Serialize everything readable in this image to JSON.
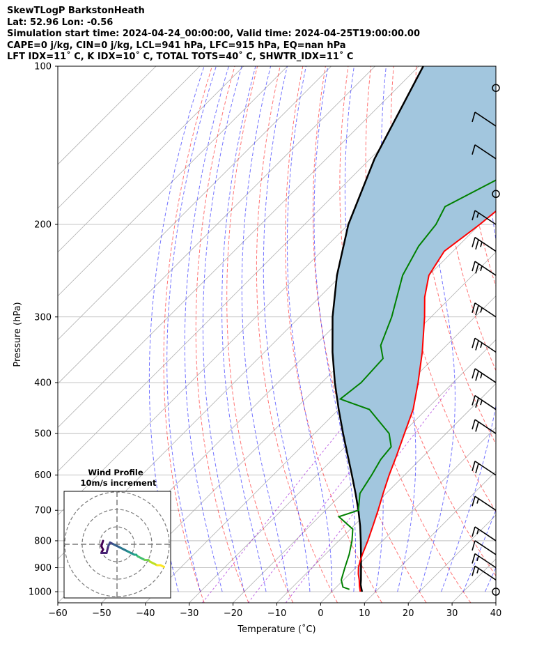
{
  "header": {
    "line1": "SkewTLogP BarkstonHeath",
    "line2": "Lat: 52.96   Lon: -0.56",
    "line3": "Simulation start time: 2024-04-24_00:00:00, Valid time: 2024-04-25T19:00:00.00",
    "line4": "CAPE=0 j/kg, CIN=0 j/kg, LCL=941 hPa, LFC=915 hPa, EQ=nan hPa",
    "line5": "LFT IDX=11˚ C, K IDX=10˚ C, TOTAL TOTS=40˚ C, SHWTR_IDX=11˚ C"
  },
  "chart_data": {
    "type": "line",
    "title": "SkewTLogP BarkstonHeath",
    "xlabel": "Temperature (˚C)",
    "ylabel": "Pressure (hPa)",
    "xlim": [
      -60,
      40
    ],
    "ylim": [
      1050,
      100
    ],
    "y_scale": "log",
    "x_ticks": [
      "−60",
      "−50",
      "−40",
      "−30",
      "−20",
      "−10",
      "0",
      "10",
      "20",
      "30",
      "40"
    ],
    "y_ticks": [
      "100",
      "200",
      "300",
      "400",
      "500",
      "600",
      "700",
      "800",
      "900",
      "1000"
    ],
    "grid": true,
    "series": [
      {
        "kind": "temperature",
        "color": "#ff0000",
        "points": [
          [
            1000,
            6.5
          ],
          [
            975,
            5
          ],
          [
            950,
            3.6
          ],
          [
            925,
            2
          ],
          [
            900,
            0.6
          ],
          [
            875,
            -0.5
          ],
          [
            850,
            -1.5
          ],
          [
            800,
            -3.4
          ],
          [
            750,
            -5.6
          ],
          [
            700,
            -8
          ],
          [
            650,
            -10.7
          ],
          [
            600,
            -13.5
          ],
          [
            550,
            -16.3
          ],
          [
            500,
            -19.5
          ],
          [
            450,
            -23
          ],
          [
            400,
            -28
          ],
          [
            350,
            -34
          ],
          [
            300,
            -41.5
          ],
          [
            275,
            -46
          ],
          [
            250,
            -50
          ],
          [
            225,
            -52
          ],
          [
            200,
            -50
          ],
          [
            175,
            -48.5
          ],
          [
            160,
            -49.5
          ],
          [
            140,
            -51
          ],
          [
            125,
            -51.5
          ],
          [
            112,
            -52
          ],
          [
            100,
            -51
          ]
        ]
      },
      {
        "kind": "dewpoint",
        "color": "#008000",
        "points": [
          [
            990,
            3.5
          ],
          [
            980,
            1.5
          ],
          [
            950,
            -0.5
          ],
          [
            900,
            -2.5
          ],
          [
            850,
            -4.5
          ],
          [
            800,
            -7
          ],
          [
            760,
            -9.5
          ],
          [
            720,
            -15.5
          ],
          [
            700,
            -12.5
          ],
          [
            650,
            -16
          ],
          [
            600,
            -17.5
          ],
          [
            560,
            -19
          ],
          [
            530,
            -19.5
          ],
          [
            500,
            -23
          ],
          [
            450,
            -33
          ],
          [
            430,
            -42
          ],
          [
            400,
            -41
          ],
          [
            360,
            -41.5
          ],
          [
            340,
            -45
          ],
          [
            300,
            -49
          ],
          [
            250,
            -56
          ],
          [
            220,
            -59
          ],
          [
            200,
            -60
          ],
          [
            185,
            -62
          ],
          [
            160,
            -55
          ],
          [
            130,
            -45
          ],
          [
            100,
            -36
          ]
        ]
      },
      {
        "kind": "parcel",
        "color": "#000000",
        "points": [
          [
            1000,
            6.9
          ],
          [
            970,
            5
          ],
          [
            950,
            4
          ],
          [
            941,
            3.5
          ],
          [
            900,
            1.2
          ],
          [
            850,
            -1.8
          ],
          [
            800,
            -5
          ],
          [
            750,
            -8.5
          ],
          [
            700,
            -12.5
          ],
          [
            650,
            -17
          ],
          [
            600,
            -22
          ],
          [
            550,
            -27.5
          ],
          [
            500,
            -33.5
          ],
          [
            450,
            -40
          ],
          [
            400,
            -47
          ],
          [
            350,
            -54.5
          ],
          [
            300,
            -62.5
          ],
          [
            250,
            -71
          ],
          [
            200,
            -80
          ],
          [
            150,
            -89
          ],
          [
            100,
            -99
          ]
        ]
      }
    ],
    "cape_shading_color": "#a2c6de",
    "wind_barbs": [
      {
        "p": 1000,
        "speed_kt": 0
      },
      {
        "p": 950,
        "speed_kt": 15
      },
      {
        "p": 900,
        "speed_kt": 15
      },
      {
        "p": 850,
        "speed_kt": 10
      },
      {
        "p": 800,
        "speed_kt": 15
      },
      {
        "p": 700,
        "speed_kt": 15
      },
      {
        "p": 600,
        "speed_kt": 20
      },
      {
        "p": 500,
        "speed_kt": 20
      },
      {
        "p": 450,
        "speed_kt": 25
      },
      {
        "p": 400,
        "speed_kt": 25
      },
      {
        "p": 350,
        "speed_kt": 25
      },
      {
        "p": 300,
        "speed_kt": 25
      },
      {
        "p": 250,
        "speed_kt": 25
      },
      {
        "p": 225,
        "speed_kt": 25
      },
      {
        "p": 200,
        "speed_kt": 15
      },
      {
        "p": 175,
        "speed_kt": 0
      },
      {
        "p": 150,
        "speed_kt": 10
      },
      {
        "p": 130,
        "speed_kt": 10
      },
      {
        "p": 110,
        "speed_kt": 0
      }
    ],
    "inset": {
      "title": "Wind Profile",
      "subtitle": "10m/s increment",
      "hodograph": [
        [
          -8,
          2
        ],
        [
          -9,
          -1
        ],
        [
          -8,
          -3
        ],
        [
          -9,
          -5
        ],
        [
          -6,
          -5
        ],
        [
          -5,
          -1
        ],
        [
          -4,
          1
        ],
        [
          -2,
          0
        ],
        [
          0,
          -1
        ],
        [
          2,
          -2
        ],
        [
          4,
          -3
        ],
        [
          6,
          -4
        ],
        [
          8,
          -5
        ],
        [
          10,
          -6
        ],
        [
          11,
          -6
        ],
        [
          12,
          -7
        ],
        [
          14,
          -8
        ],
        [
          16,
          -9
        ],
        [
          18,
          -9
        ],
        [
          19,
          -10
        ],
        [
          21,
          -11
        ],
        [
          23,
          -12
        ],
        [
          25,
          -12
        ],
        [
          27,
          -13
        ]
      ]
    }
  }
}
